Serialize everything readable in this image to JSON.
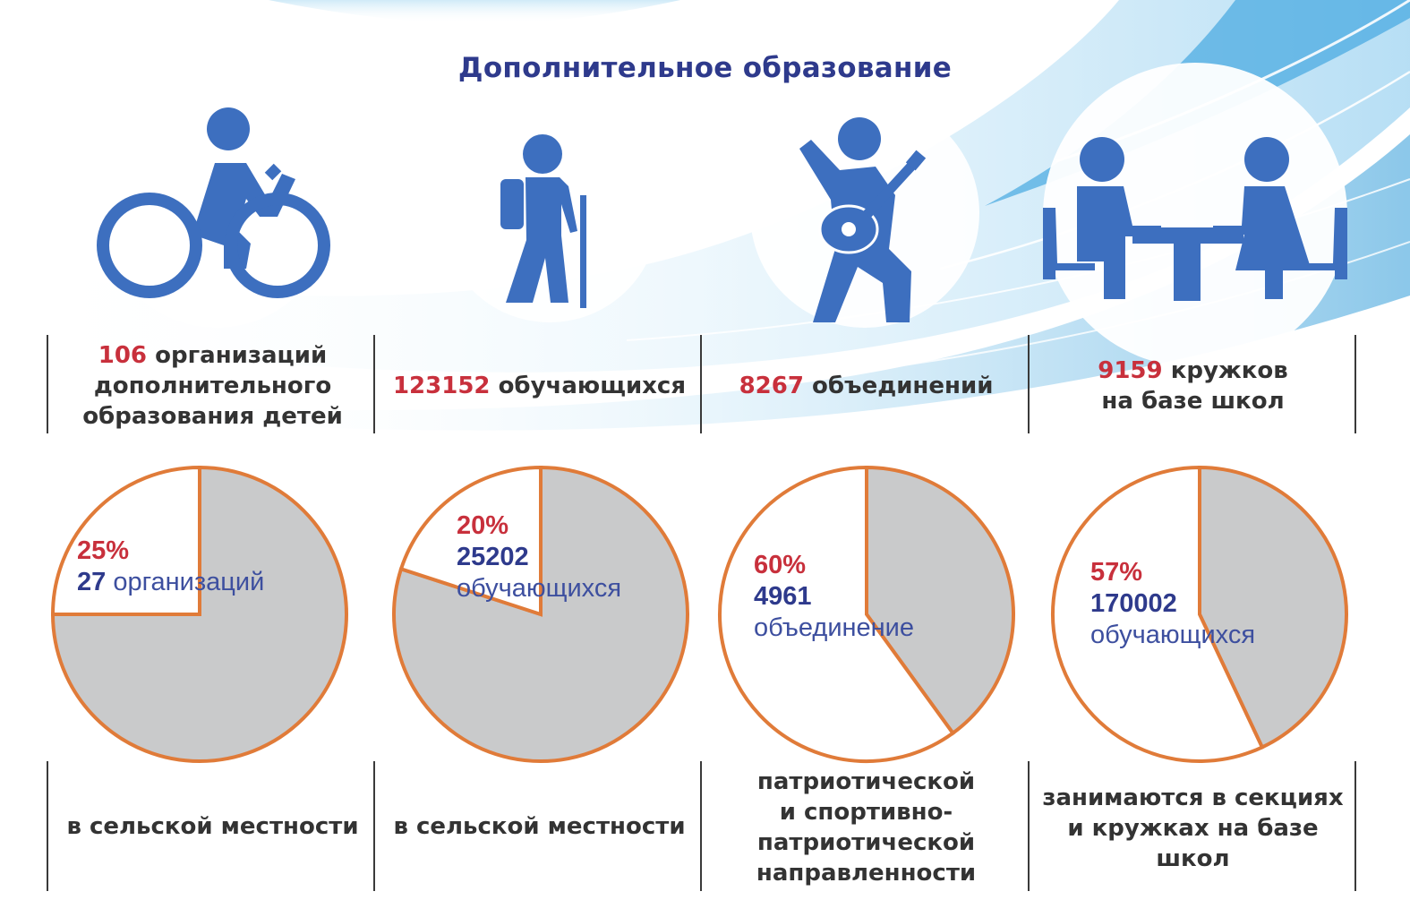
{
  "title": "Дополнительное образование",
  "colors": {
    "title": "#2e3a8c",
    "icon": "#3d6fbf",
    "highlight": "#c8303c",
    "text": "#333333",
    "pie_fill": "#c9cacb",
    "pie_outline": "#e07b39",
    "pie_number": "#2e3a8c"
  },
  "icons": [
    "cyclist-icon",
    "hiker-icon",
    "guitarist-icon",
    "people-at-table-icon"
  ],
  "stats": [
    {
      "number": "106",
      "text": "организаций дополнительного образования детей"
    },
    {
      "number": "123152",
      "text": "обучающихся"
    },
    {
      "number": "8267",
      "text": "объединений"
    },
    {
      "number": "9159",
      "text": "кружков на базе школ"
    }
  ],
  "chart_data": [
    {
      "type": "pie",
      "highlight_percent": 25,
      "labels": {
        "percent": "25%",
        "count": "27",
        "unit": "организаций"
      },
      "caption": "в сельской местности"
    },
    {
      "type": "pie",
      "highlight_percent": 20,
      "labels": {
        "percent": "20%",
        "count": "25202",
        "unit": "обучающихся"
      },
      "caption": "в сельской местности"
    },
    {
      "type": "pie",
      "highlight_percent": 60,
      "labels": {
        "percent": "60%",
        "count": "4961",
        "unit": "объединение"
      },
      "caption": "патриотической и спортивно-патриотической направленности"
    },
    {
      "type": "pie",
      "highlight_percent": 57,
      "labels": {
        "percent": "57%",
        "count": "170002",
        "unit": "обучающихся"
      },
      "caption": "занимаются в секциях и кружках на базе школ"
    }
  ]
}
